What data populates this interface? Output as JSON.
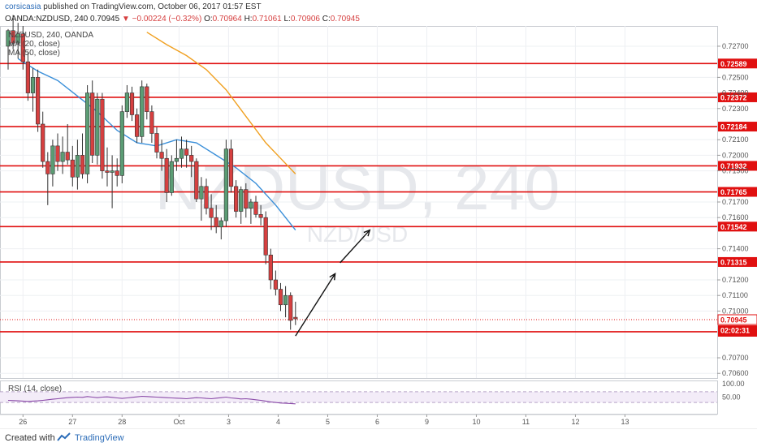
{
  "header": {
    "publisher": "corsicasia",
    "published_text": "published on TradingView.com, October 06, 2017 01:57 EST",
    "symbol_line": "OANDA:NZDUSD, 240",
    "last": "0.70945",
    "change_icon": "triangle-down-icon",
    "change": "−0.00224 (−0.32%)",
    "o_label": "O:",
    "o": "0.70964",
    "h_label": "H:",
    "h": "0.71061",
    "l_label": "L:",
    "l": "0.70906",
    "c_label": "C:",
    "c": "0.70945",
    "overlay_symbol": "NZDUSD, 240, OANDA",
    "ma1_label": "MA (20, close)",
    "ma2_label": "MA (50, close)"
  },
  "watermark": {
    "big": "NZDUSD, 240",
    "small": "NZD/USD"
  },
  "rsi_label": "RSI (14, close)",
  "footer": {
    "made": "Created with",
    "brand": "TradingView",
    "logo_icon": "tradingview-logo-icon"
  },
  "colors": {
    "up": "#5b9c74",
    "down": "#d64040",
    "ma20": "#3a8fd9",
    "ma50": "#f0a020",
    "level": "#e01010",
    "rsi": "#8a4aa8",
    "arrow": "#111111"
  },
  "chart_data": {
    "type": "candlestick",
    "timeframe": "240",
    "ylim": [
      0.7057,
      0.7283
    ],
    "price_ticks": [
      "0.72700",
      "0.72500",
      "0.72400",
      "0.72300",
      "0.72100",
      "0.72000",
      "0.71900",
      "0.71700",
      "0.71600",
      "0.71400",
      "0.71200",
      "0.71100",
      "0.71000",
      "0.70700",
      "0.70600"
    ],
    "x_ticks": [
      {
        "label": "26",
        "i": 3
      },
      {
        "label": "27",
        "i": 13
      },
      {
        "label": "28",
        "i": 23
      },
      {
        "label": "Oct",
        "i": 34.5
      },
      {
        "label": "3",
        "i": 44.5
      },
      {
        "label": "4",
        "i": 54.5
      },
      {
        "label": "5",
        "i": 64.5
      },
      {
        "label": "6",
        "i": 74.5
      },
      {
        "label": "9",
        "i": 84.5
      },
      {
        "label": "10",
        "i": 94.5
      },
      {
        "label": "11",
        "i": 104.5
      },
      {
        "label": "12",
        "i": 114.5
      },
      {
        "label": "13",
        "i": 124.5
      }
    ],
    "candles": [
      [
        0.727,
        0.7281,
        0.7255,
        0.728
      ],
      [
        0.728,
        0.729,
        0.7268,
        0.7272
      ],
      [
        0.7272,
        0.7285,
        0.7262,
        0.7278
      ],
      [
        0.7278,
        0.7283,
        0.7255,
        0.726
      ],
      [
        0.726,
        0.7266,
        0.7235,
        0.724
      ],
      [
        0.724,
        0.7256,
        0.7228,
        0.725
      ],
      [
        0.725,
        0.7255,
        0.7215,
        0.722
      ],
      [
        0.722,
        0.7228,
        0.7192,
        0.7196
      ],
      [
        0.7196,
        0.7202,
        0.7168,
        0.7188
      ],
      [
        0.7188,
        0.721,
        0.718,
        0.7206
      ],
      [
        0.7206,
        0.7214,
        0.719,
        0.7196
      ],
      [
        0.7196,
        0.7212,
        0.7188,
        0.7202
      ],
      [
        0.7202,
        0.722,
        0.7194,
        0.7197
      ],
      [
        0.7197,
        0.7206,
        0.718,
        0.7186
      ],
      [
        0.7186,
        0.721,
        0.7178,
        0.72
      ],
      [
        0.72,
        0.7214,
        0.7185,
        0.7188
      ],
      [
        0.7188,
        0.7245,
        0.7182,
        0.724
      ],
      [
        0.724,
        0.7248,
        0.7195,
        0.72
      ],
      [
        0.72,
        0.724,
        0.7194,
        0.7236
      ],
      [
        0.7236,
        0.724,
        0.7185,
        0.719
      ],
      [
        0.719,
        0.7205,
        0.718,
        0.7189
      ],
      [
        0.7189,
        0.72,
        0.7166,
        0.719
      ],
      [
        0.719,
        0.7198,
        0.718,
        0.7187
      ],
      [
        0.7187,
        0.7232,
        0.7182,
        0.7228
      ],
      [
        0.7228,
        0.7245,
        0.7224,
        0.724
      ],
      [
        0.724,
        0.7244,
        0.7222,
        0.7226
      ],
      [
        0.7226,
        0.723,
        0.7208,
        0.7212
      ],
      [
        0.7212,
        0.7248,
        0.7208,
        0.7244
      ],
      [
        0.7244,
        0.7246,
        0.7223,
        0.7228
      ],
      [
        0.7228,
        0.7232,
        0.7208,
        0.7214
      ],
      [
        0.7214,
        0.7218,
        0.7198,
        0.7202
      ],
      [
        0.7202,
        0.721,
        0.719,
        0.7198
      ],
      [
        0.7198,
        0.7204,
        0.717,
        0.7176
      ],
      [
        0.7176,
        0.72,
        0.7174,
        0.7196
      ],
      [
        0.7196,
        0.721,
        0.719,
        0.7198
      ],
      [
        0.7198,
        0.7212,
        0.7192,
        0.7204
      ],
      [
        0.7204,
        0.721,
        0.7192,
        0.72
      ],
      [
        0.72,
        0.7206,
        0.7186,
        0.7196
      ],
      [
        0.7196,
        0.7198,
        0.717,
        0.7172
      ],
      [
        0.7172,
        0.7186,
        0.7158,
        0.718
      ],
      [
        0.718,
        0.7185,
        0.7162,
        0.7166
      ],
      [
        0.7166,
        0.7175,
        0.7152,
        0.716
      ],
      [
        0.716,
        0.7168,
        0.715,
        0.7154
      ],
      [
        0.7154,
        0.716,
        0.7146,
        0.7158
      ],
      [
        0.7158,
        0.721,
        0.7154,
        0.7204
      ],
      [
        0.7204,
        0.721,
        0.7176,
        0.718
      ],
      [
        0.718,
        0.7184,
        0.716,
        0.7164
      ],
      [
        0.7164,
        0.718,
        0.7156,
        0.7178
      ],
      [
        0.7178,
        0.7182,
        0.716,
        0.7166
      ],
      [
        0.7166,
        0.7172,
        0.7156,
        0.717
      ],
      [
        0.717,
        0.7174,
        0.716,
        0.7162
      ],
      [
        0.7162,
        0.7168,
        0.7155,
        0.716
      ],
      [
        0.716,
        0.7164,
        0.713,
        0.7136
      ],
      [
        0.7136,
        0.714,
        0.7114,
        0.712
      ],
      [
        0.712,
        0.7126,
        0.711,
        0.7114
      ],
      [
        0.7114,
        0.7118,
        0.71,
        0.7104
      ],
      [
        0.7104,
        0.7116,
        0.7096,
        0.711
      ],
      [
        0.711,
        0.7112,
        0.7088,
        0.7094
      ],
      [
        0.7096,
        0.7106,
        0.7091,
        0.7095
      ]
    ],
    "candle_x_index": [
      0,
      1,
      2,
      3,
      4,
      5,
      6,
      7,
      8,
      9,
      10,
      11,
      12,
      13,
      14,
      15,
      16,
      17,
      18,
      19,
      20,
      21,
      22,
      23,
      24,
      25,
      26,
      27,
      28,
      29,
      30,
      31,
      32,
      33,
      34,
      35,
      36,
      37,
      38,
      39,
      40,
      41,
      42,
      43,
      44,
      45,
      46,
      47,
      48,
      49,
      50,
      51,
      52,
      53,
      54,
      55,
      56,
      57,
      58
    ],
    "ma20": [
      [
        2,
        0.7262
      ],
      [
        6,
        0.7254
      ],
      [
        10,
        0.7248
      ],
      [
        14,
        0.7238
      ],
      [
        18,
        0.7228
      ],
      [
        22,
        0.7216
      ],
      [
        26,
        0.7208
      ],
      [
        30,
        0.7206
      ],
      [
        34,
        0.721
      ],
      [
        38,
        0.7208
      ],
      [
        42,
        0.72
      ],
      [
        46,
        0.7192
      ],
      [
        50,
        0.7182
      ],
      [
        54,
        0.7168
      ],
      [
        58,
        0.7152
      ]
    ],
    "ma50": [
      [
        28,
        0.7279
      ],
      [
        32,
        0.7271
      ],
      [
        36,
        0.7264
      ],
      [
        40,
        0.7255
      ],
      [
        44,
        0.7242
      ],
      [
        48,
        0.7225
      ],
      [
        52,
        0.7208
      ],
      [
        55,
        0.7198
      ],
      [
        58,
        0.7188
      ]
    ],
    "levels": [
      "0.72589",
      "0.72372",
      "0.72184",
      "0.71932",
      "0.71765",
      "0.71542",
      "0.71315",
      "0.70867"
    ],
    "current_price": "0.70945",
    "countdown": "02:02:31",
    "projection": [
      [
        58,
        0.7084
      ],
      [
        66,
        0.7124
      ],
      [
        67,
        0.7131
      ],
      [
        73,
        0.7152
      ]
    ],
    "rsi": {
      "ticks": [
        "100.00",
        "50.00"
      ],
      "values": [
        38,
        37,
        36,
        35,
        34,
        35,
        36,
        38,
        40,
        42,
        44,
        46,
        48,
        49,
        50,
        49,
        52,
        50,
        48,
        50,
        51,
        49,
        47,
        45,
        47,
        49,
        51,
        53,
        52,
        51,
        50,
        49,
        48,
        47,
        46,
        45,
        44,
        46,
        48,
        47,
        45,
        44,
        46,
        48,
        50,
        47,
        45,
        43,
        44,
        42,
        40,
        38,
        35,
        32,
        30,
        28,
        27,
        26,
        25
      ]
    }
  }
}
